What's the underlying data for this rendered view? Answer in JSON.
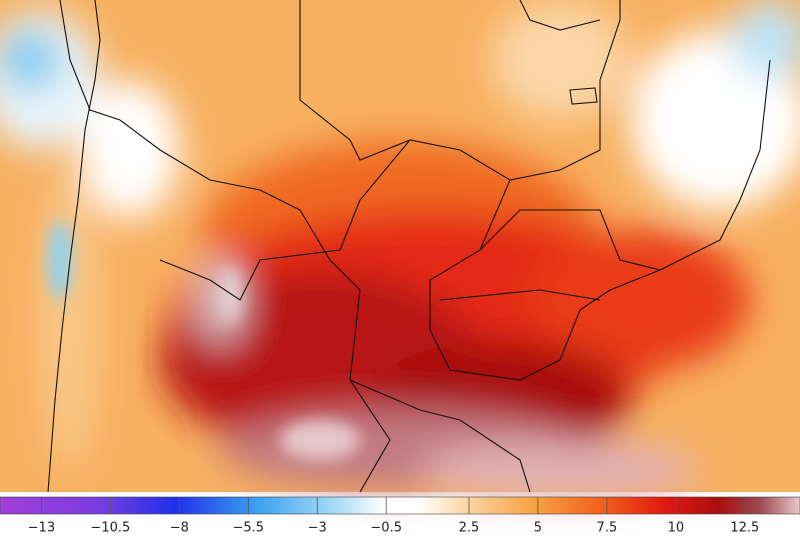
{
  "colorbar": {
    "lim": [
      -14.5,
      14.5
    ],
    "ticks": [
      {
        "value": -13,
        "label": "−13"
      },
      {
        "value": -10.5,
        "label": "−10.5"
      },
      {
        "value": -8,
        "label": "−8"
      },
      {
        "value": -5.5,
        "label": "−5.5"
      },
      {
        "value": -3,
        "label": "−3"
      },
      {
        "value": -0.5,
        "label": "−0.5"
      },
      {
        "value": 2.5,
        "label": "2.5"
      },
      {
        "value": 5,
        "label": "5"
      },
      {
        "value": 7.5,
        "label": "7.5"
      },
      {
        "value": 10,
        "label": "10"
      },
      {
        "value": 12.5,
        "label": "12.5"
      }
    ]
  }
}
